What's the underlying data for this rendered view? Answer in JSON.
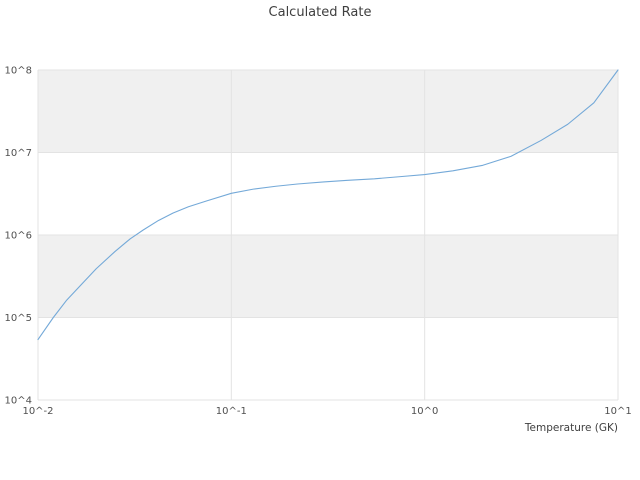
{
  "page": {
    "title": "Calculated Rate"
  },
  "chart_data": {
    "type": "line",
    "title": "Calculated Rate",
    "xlabel": "Temperature (GK)",
    "ylabel": "",
    "x_scale": "log",
    "y_scale": "log",
    "xlim": [
      0.01,
      10
    ],
    "ylim": [
      10000,
      100000000
    ],
    "grid": true,
    "legend": "none",
    "banded_background": true,
    "x_ticks": [
      {
        "value": 0.01,
        "label": "10^-2"
      },
      {
        "value": 0.1,
        "label": "10^-1"
      },
      {
        "value": 1,
        "label": "10^0"
      },
      {
        "value": 10,
        "label": "10^1"
      }
    ],
    "y_ticks": [
      {
        "value": 10000,
        "label": "10^4"
      },
      {
        "value": 100000,
        "label": "10^5"
      },
      {
        "value": 1000000,
        "label": "10^6"
      },
      {
        "value": 10000000,
        "label": "10^7"
      },
      {
        "value": 100000000,
        "label": "10^8"
      }
    ],
    "series": [
      {
        "name": "calculated-rate",
        "color": "#74a9d8",
        "x": [
          0.01,
          0.012,
          0.014,
          0.017,
          0.02,
          0.025,
          0.03,
          0.035,
          0.042,
          0.05,
          0.06,
          0.075,
          0.1,
          0.13,
          0.17,
          0.22,
          0.3,
          0.4,
          0.55,
          0.75,
          1.0,
          1.4,
          2.0,
          2.8,
          4.0,
          5.5,
          7.5,
          10.0
        ],
        "y": [
          54000.0,
          100000.0,
          160000.0,
          260000.0,
          390000.0,
          630000.0,
          900000.0,
          1150000.0,
          1500000.0,
          1850000.0,
          2200000.0,
          2600000.0,
          3200000.0,
          3600000.0,
          3900000.0,
          4150000.0,
          4400000.0,
          4600000.0,
          4800000.0,
          5100000.0,
          5400000.0,
          6000000.0,
          7000000.0,
          9000000.0,
          14000000.0,
          22000000.0,
          40000000.0,
          100000000.0
        ]
      }
    ],
    "colors": {
      "band": "#f0f0f0",
      "grid": "#e3e3e3",
      "title": "#3f3f3f",
      "tick": "#4f4f4f",
      "background": "#ffffff"
    }
  }
}
